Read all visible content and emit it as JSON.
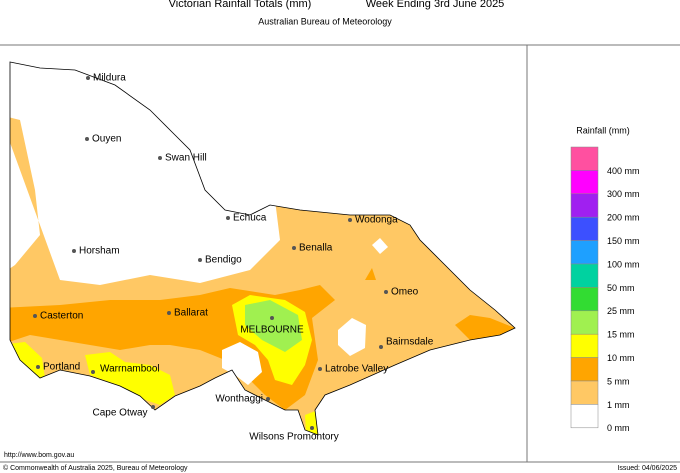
{
  "header": {
    "title": "Victorian Rainfall Totals (mm)",
    "week": "Week Ending 3rd June 2025",
    "subtitle": "Australian Bureau of Meteorology"
  },
  "towns": [
    "Mildura",
    "Ouyen",
    "Swan Hill",
    "Echuca",
    "Horsham",
    "Bendigo",
    "Benalla",
    "Wodonga",
    "Omeo",
    "Casterton",
    "Ballarat",
    "MELBOURNE",
    "Bairnsdale",
    "Portland",
    "Warrnambool",
    "Latrobe Valley",
    "Wonthaggi",
    "Cape Otway",
    "Wilsons Promontory"
  ],
  "legend": {
    "title": "Rainfall (mm)",
    "items": [
      {
        "label": "400 mm",
        "color": "#ff50a0"
      },
      {
        "label": "300 mm",
        "color": "#ff00ff"
      },
      {
        "label": "200 mm",
        "color": "#a020f0"
      },
      {
        "label": "150 mm",
        "color": "#3c50ff"
      },
      {
        "label": "100 mm",
        "color": "#1ea0ff"
      },
      {
        "label": "50 mm",
        "color": "#00d2a0"
      },
      {
        "label": "25 mm",
        "color": "#32dc32"
      },
      {
        "label": "15 mm",
        "color": "#a0f050"
      },
      {
        "label": "10 mm",
        "color": "#ffff00"
      },
      {
        "label": "5 mm",
        "color": "#ffa500"
      },
      {
        "label": "1 mm",
        "color": "#ffc864"
      },
      {
        "label": "0 mm",
        "color": "#ffffff"
      }
    ]
  },
  "footer": {
    "url": "http://www.bom.gov.au",
    "copyright": "© Commonwealth of Australia 2025, Bureau of Meteorology",
    "issued": "Issued: 04/06/2025"
  }
}
